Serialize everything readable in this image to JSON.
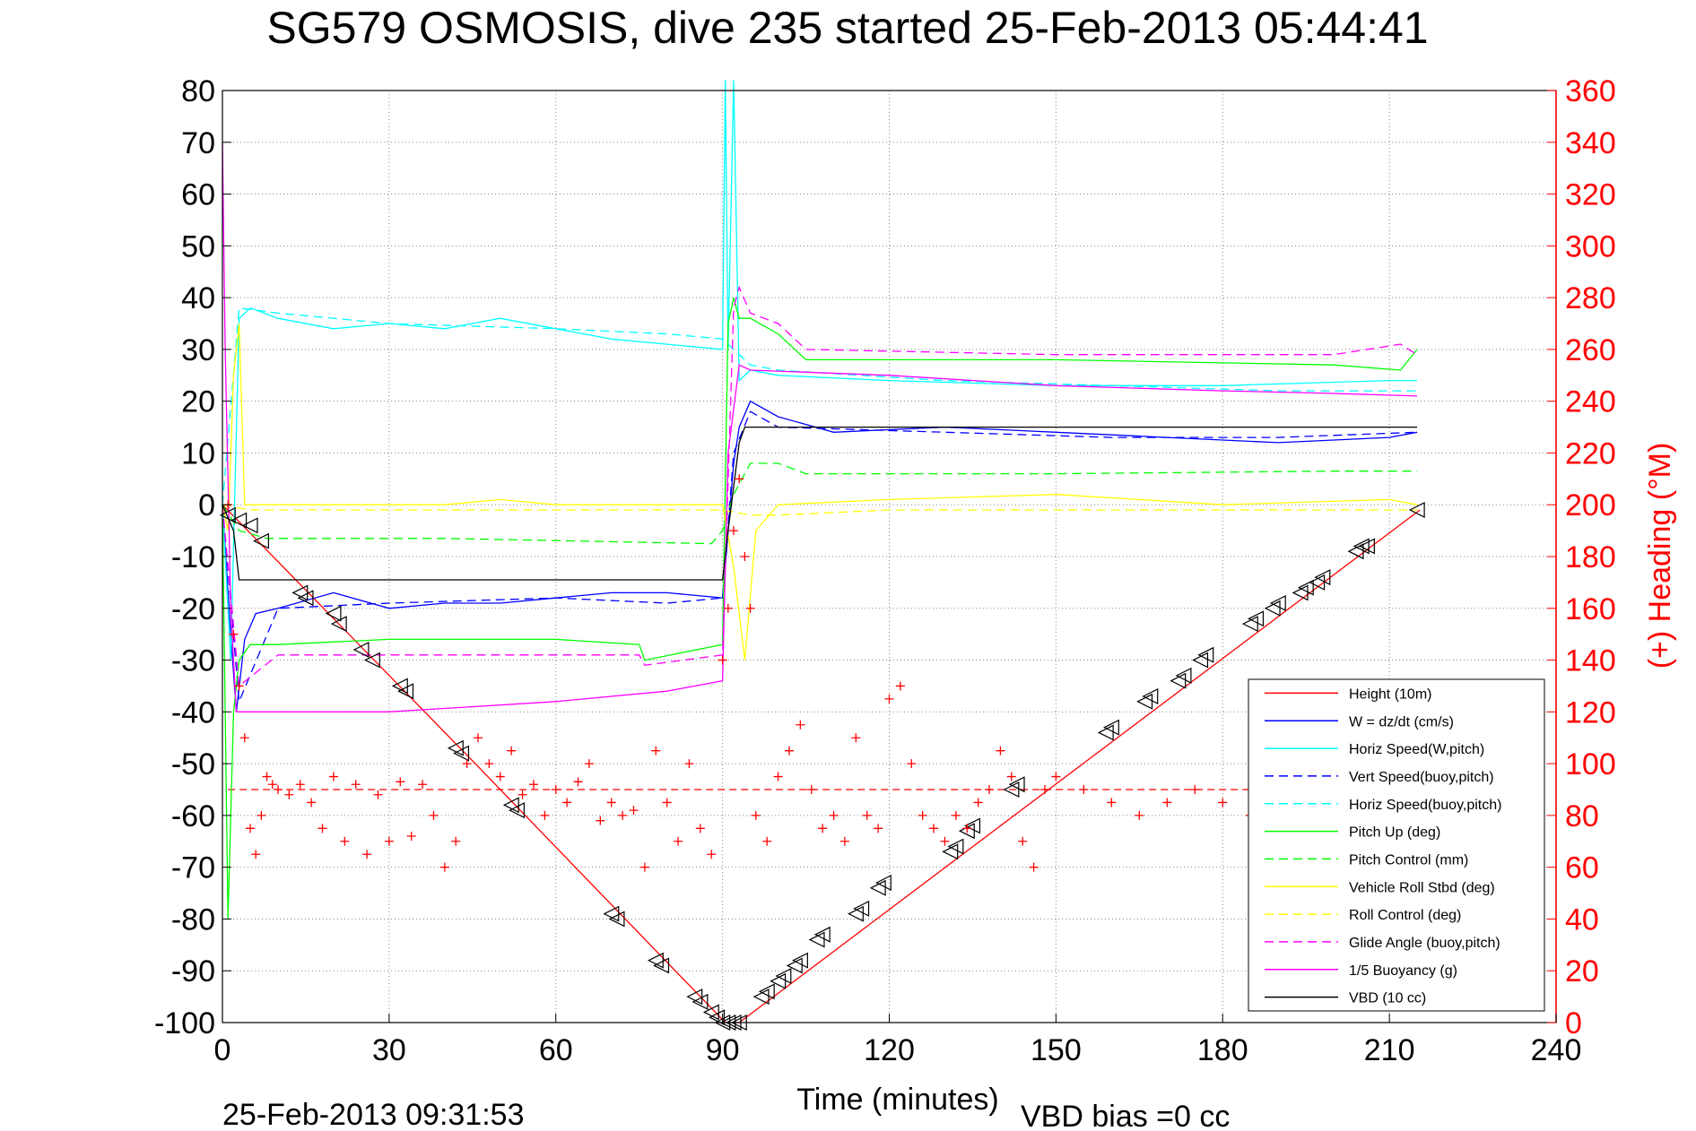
{
  "chart_data": {
    "type": "line",
    "title": "SG579 OSMOSIS, dive 235 started 25-Feb-2013 05:44:41",
    "xlabel": "Time (minutes)",
    "ylabel_right": "(+) Heading (°M)",
    "footer_left": "25-Feb-2013 09:31:53",
    "footer_right": "VBD bias =0 cc",
    "xlim": [
      0,
      240
    ],
    "ylim": [
      -100,
      80
    ],
    "ylim_right": [
      0,
      360
    ],
    "xticks": [
      "0",
      "30",
      "60",
      "90",
      "120",
      "150",
      "180",
      "210",
      "240"
    ],
    "yticks": [
      "80",
      "70",
      "60",
      "50",
      "40",
      "30",
      "20",
      "10",
      "0",
      "-10",
      "-20",
      "-30",
      "-40",
      "-50",
      "-60",
      "-70",
      "-80",
      "-90",
      "-100"
    ],
    "yticks_right": [
      "360",
      "340",
      "320",
      "300",
      "280",
      "260",
      "240",
      "220",
      "200",
      "180",
      "160",
      "140",
      "120",
      "100",
      "80",
      "60",
      "40",
      "20",
      "0"
    ],
    "grid": true,
    "legend_position": "lower-right",
    "colors": {
      "red": "#ff0000",
      "blue": "#0000ff",
      "cyan": "#00ffff",
      "green": "#00ff00",
      "yellow": "#ffff00",
      "magenta": "#ff00ff",
      "black": "#000000"
    },
    "series": [
      {
        "name": "Height (10m)",
        "color": "#ff0000",
        "style": "solid",
        "x": [
          0,
          45.5,
          90.5,
          93,
          215.5
        ],
        "y": [
          0,
          -50,
          -100,
          -100,
          -1
        ]
      },
      {
        "name": "W = dz/dt (cm/s)",
        "color": "#0000ff",
        "style": "solid",
        "x": [
          0,
          1.5,
          2.5,
          4,
          6,
          10,
          20,
          30,
          40,
          50,
          60,
          70,
          80,
          90,
          90.5,
          92,
          93,
          95,
          100,
          110,
          130,
          150,
          170,
          190,
          210,
          215
        ],
        "y": [
          0,
          -25,
          -40,
          -26,
          -21,
          -20,
          -17,
          -20,
          -19,
          -19,
          -18,
          -17,
          -17,
          -18,
          -12,
          8,
          15,
          20,
          17,
          14,
          15,
          14,
          13,
          12,
          13,
          14
        ]
      },
      {
        "name": "Horiz Speed(W,pitch)",
        "color": "#00ffff",
        "style": "solid",
        "x": [
          0,
          1.5,
          3,
          5,
          10,
          20,
          30,
          40,
          50,
          60,
          70,
          80,
          90,
          90.5,
          91,
          92,
          93,
          95,
          100,
          120,
          150,
          180,
          210,
          215
        ],
        "y": [
          0,
          -30,
          36,
          38,
          36,
          34,
          35,
          34,
          36,
          34,
          32,
          31,
          30,
          82,
          30,
          82,
          24,
          26,
          25,
          24,
          23,
          23,
          24,
          24
        ]
      },
      {
        "name": "Vert Speed(buoy,pitch)",
        "color": "#0000ff",
        "style": "dashed",
        "x": [
          0,
          3,
          10,
          30,
          60,
          80,
          90,
          92,
          95,
          100,
          130,
          160,
          190,
          215
        ],
        "y": [
          0,
          -38,
          -20,
          -19,
          -18,
          -19,
          -18,
          10,
          18,
          15,
          14,
          13,
          13,
          14
        ]
      },
      {
        "name": "Horiz Speed(buoy,pitch)",
        "color": "#00ffff",
        "style": "dashed",
        "x": [
          0,
          3,
          10,
          30,
          60,
          80,
          90,
          92,
          95,
          100,
          130,
          160,
          190,
          215
        ],
        "y": [
          0,
          38,
          37,
          35,
          34,
          33,
          32,
          30,
          27,
          26,
          24,
          23,
          22,
          22
        ]
      },
      {
        "name": "Pitch Up (deg)",
        "color": "#00ff00",
        "style": "solid",
        "x": [
          0,
          1,
          2,
          3,
          5,
          10,
          30,
          60,
          75,
          76,
          90,
          91,
          92,
          93,
          95,
          100,
          105,
          150,
          200,
          212,
          215
        ],
        "y": [
          0,
          -80,
          -40,
          -30,
          -27,
          -27,
          -26,
          -26,
          -27,
          -30,
          -27,
          35,
          40,
          36,
          36,
          33,
          28,
          28,
          27,
          26,
          30
        ]
      },
      {
        "name": "Pitch Control (mm)",
        "color": "#00ff00",
        "style": "dashed",
        "x": [
          0,
          3,
          8,
          40,
          88,
          90,
          92,
          95,
          100,
          105,
          150,
          200,
          215
        ],
        "y": [
          0,
          -5,
          -6.5,
          -6.5,
          -7.5,
          -5,
          2,
          8,
          8,
          6,
          6,
          6.5,
          6.5
        ]
      },
      {
        "name": "Vehicle Roll Stbd (deg)",
        "color": "#ffff00",
        "style": "solid",
        "x": [
          0,
          1,
          2,
          3,
          4,
          5,
          10,
          20,
          30,
          40,
          50,
          60,
          70,
          80,
          90,
          92,
          94,
          96,
          100,
          120,
          150,
          180,
          210,
          215
        ],
        "y": [
          0,
          -5,
          25,
          35,
          0,
          0,
          0,
          0,
          0,
          0,
          1,
          0,
          0,
          0,
          0,
          -12,
          -30,
          -5,
          0,
          1,
          2,
          0,
          1,
          0
        ]
      },
      {
        "name": "Roll Control (deg)",
        "color": "#ffff00",
        "style": "dashed",
        "x": [
          0,
          5,
          30,
          60,
          90,
          95,
          100,
          120,
          150,
          180,
          215
        ],
        "y": [
          0,
          -1,
          -1,
          -1,
          -1,
          -2,
          -2,
          -1,
          -1,
          -1,
          -1
        ]
      },
      {
        "name": "Glide Angle (buoy,pitch)",
        "color": "#ff00ff",
        "style": "dashed",
        "x": [
          0,
          3,
          10,
          30,
          60,
          75,
          76,
          90,
          92,
          93,
          95,
          100,
          105,
          150,
          200,
          212,
          215
        ],
        "y": [
          0,
          -35,
          -29,
          -29,
          -29,
          -29,
          -31,
          -29,
          38,
          42,
          37,
          35,
          30,
          29,
          29,
          31,
          29
        ]
      },
      {
        "name": "1/5 Buoyancy (g)",
        "color": "#ff00ff",
        "style": "solid",
        "x": [
          0,
          0.5,
          1.5,
          2.5,
          10,
          30,
          60,
          80,
          90,
          91,
          93,
          95,
          120,
          150,
          180,
          200,
          215
        ],
        "y": [
          70,
          30,
          -20,
          -40,
          -40,
          -40,
          -38,
          -36,
          -34,
          10,
          27,
          26,
          25,
          23,
          22,
          21.5,
          21
        ]
      },
      {
        "name": "VBD (10 cc)",
        "color": "#000000",
        "style": "solid",
        "x": [
          0,
          2,
          3,
          40,
          80,
          90,
          91,
          93,
          94,
          150,
          215
        ],
        "y": [
          0,
          -5,
          -14.5,
          -14.5,
          -14.5,
          -14.5,
          -5,
          12,
          15,
          15,
          15
        ]
      }
    ],
    "markers": {
      "name": "Height (10m) samples",
      "color": "#000000",
      "symbol": "triangle-left",
      "x": [
        1,
        3,
        5,
        7,
        14,
        15,
        20,
        21,
        25,
        27,
        32,
        33,
        42,
        43,
        52,
        53,
        70,
        71,
        78,
        79,
        85,
        86,
        88,
        89,
        90,
        91,
        92,
        93,
        97,
        98,
        100,
        101,
        103,
        104,
        107,
        108,
        114,
        115,
        118,
        119,
        131,
        132,
        134,
        135,
        142,
        143,
        159,
        160,
        166,
        167,
        172,
        173,
        176,
        177,
        185,
        186,
        189,
        190,
        194,
        195,
        197,
        198,
        204,
        205,
        206,
        215
      ],
      "y": [
        -2,
        -3,
        -4,
        -7,
        -17,
        -18,
        -21,
        -23,
        -28,
        -30,
        -35,
        -36,
        -47,
        -48,
        -58,
        -59,
        -79,
        -80,
        -88,
        -89,
        -95,
        -96,
        -98,
        -99,
        -100,
        -100,
        -100,
        -100,
        -95,
        -94,
        -92,
        -91,
        -89,
        -88,
        -84,
        -83,
        -79,
        -78,
        -74,
        -73,
        -67,
        -66,
        -63,
        -62,
        -55,
        -54,
        -44,
        -43,
        -38,
        -37,
        -34,
        -33,
        -30,
        -29,
        -23,
        -22,
        -20,
        -19,
        -17,
        -16,
        -15,
        -14,
        -9,
        -8,
        -8,
        -1
      ]
    },
    "heading_series": {
      "name": "Heading",
      "color": "#ff0000",
      "symbol": "plus",
      "mean_line": 90,
      "x": [
        1,
        2,
        3,
        4,
        5,
        6,
        7,
        8,
        9,
        10,
        12,
        14,
        16,
        18,
        20,
        22,
        24,
        26,
        28,
        30,
        32,
        34,
        36,
        38,
        40,
        42,
        44,
        46,
        48,
        50,
        52,
        54,
        56,
        58,
        60,
        62,
        64,
        66,
        68,
        70,
        72,
        74,
        76,
        78,
        80,
        82,
        84,
        86,
        88,
        90,
        91,
        92,
        93,
        94,
        95,
        96,
        98,
        100,
        102,
        104,
        106,
        108,
        110,
        112,
        114,
        116,
        118,
        120,
        122,
        124,
        126,
        128,
        130,
        132,
        134,
        136,
        138,
        140,
        142,
        144,
        146,
        148,
        150,
        155,
        160,
        165,
        170,
        175,
        180,
        185
      ],
      "y": [
        200,
        150,
        130,
        110,
        75,
        65,
        80,
        95,
        92,
        90,
        88,
        92,
        85,
        75,
        95,
        70,
        92,
        65,
        88,
        70,
        93,
        72,
        92,
        80,
        60,
        70,
        100,
        110,
        100,
        95,
        105,
        88,
        92,
        80,
        90,
        85,
        93,
        100,
        78,
        85,
        80,
        82,
        60,
        105,
        85,
        70,
        100,
        75,
        65,
        140,
        160,
        190,
        210,
        180,
        160,
        80,
        70,
        95,
        105,
        115,
        90,
        75,
        80,
        70,
        110,
        80,
        75,
        125,
        130,
        100,
        80,
        75,
        70,
        80,
        75,
        85,
        90,
        105,
        95,
        70,
        60,
        90,
        95,
        90,
        85,
        80,
        85,
        90,
        85,
        80
      ]
    }
  }
}
